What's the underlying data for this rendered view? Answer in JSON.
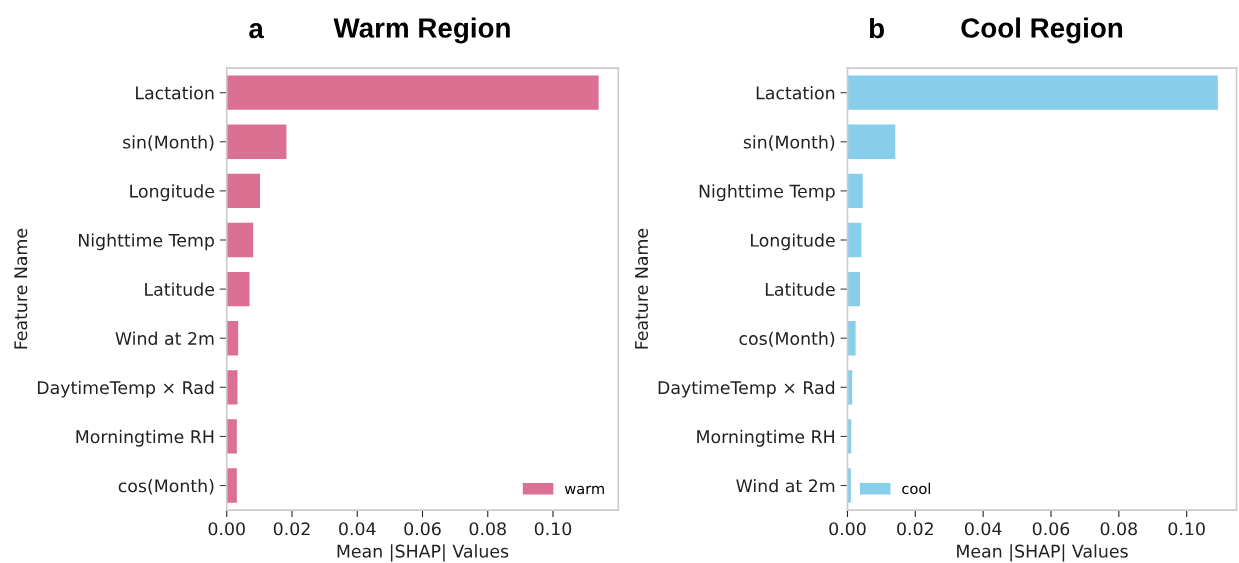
{
  "chart_data": [
    {
      "type": "bar",
      "orientation": "horizontal",
      "title": "Warm Region",
      "annotations": [
        "a"
      ],
      "xlabel": "Mean |SHAP| Values",
      "ylabel": "Feature Name",
      "categories": [
        "Lactation",
        "sin(Month)",
        "Longitude",
        "Nighttime Temp",
        "Latitude",
        "Wind at 2m",
        "DaytimeTemp × Rad",
        "Morningtime RH",
        "cos(Month)"
      ],
      "series": [
        {
          "name": "warm",
          "color": "#db7093",
          "values": [
            0.114,
            0.0183,
            0.0102,
            0.0081,
            0.007,
            0.0035,
            0.0033,
            0.0031,
            0.0031
          ]
        }
      ],
      "xlim": [
        0,
        0.12
      ],
      "xticks": [
        {
          "value": 0,
          "label": "0.00"
        },
        {
          "value": 0.02,
          "label": "0.02"
        },
        {
          "value": 0.04,
          "label": "0.04"
        },
        {
          "value": 0.06,
          "label": "0.06"
        },
        {
          "value": 0.08,
          "label": "0.08"
        },
        {
          "value": 0.1,
          "label": "0.10"
        }
      ],
      "grid": false,
      "legend": "bottom right"
    },
    {
      "type": "bar",
      "orientation": "horizontal",
      "title": "Cool Region",
      "annotations": [
        "b"
      ],
      "xlabel": "Mean |SHAP| Values",
      "ylabel": "Feature Name",
      "categories": [
        "Lactation",
        "sin(Month)",
        "Nighttime Temp",
        "Longitude",
        "Latitude",
        "cos(Month)",
        "DaytimeTemp × Rad",
        "Morningtime RH",
        "Wind at 2m"
      ],
      "series": [
        {
          "name": "cool",
          "color": "#87ceeb",
          "values": [
            0.1092,
            0.0141,
            0.0045,
            0.0041,
            0.0037,
            0.0024,
            0.0014,
            0.0011,
            0.001
          ]
        }
      ],
      "xlim": [
        0,
        0.1147
      ],
      "xticks": [
        {
          "value": 0,
          "label": "0.00"
        },
        {
          "value": 0.02,
          "label": "0.02"
        },
        {
          "value": 0.04,
          "label": "0.04"
        },
        {
          "value": 0.06,
          "label": "0.06"
        },
        {
          "value": 0.08,
          "label": "0.08"
        },
        {
          "value": 0.1,
          "label": "0.10"
        }
      ],
      "grid": false,
      "legend": "bottom left"
    }
  ]
}
